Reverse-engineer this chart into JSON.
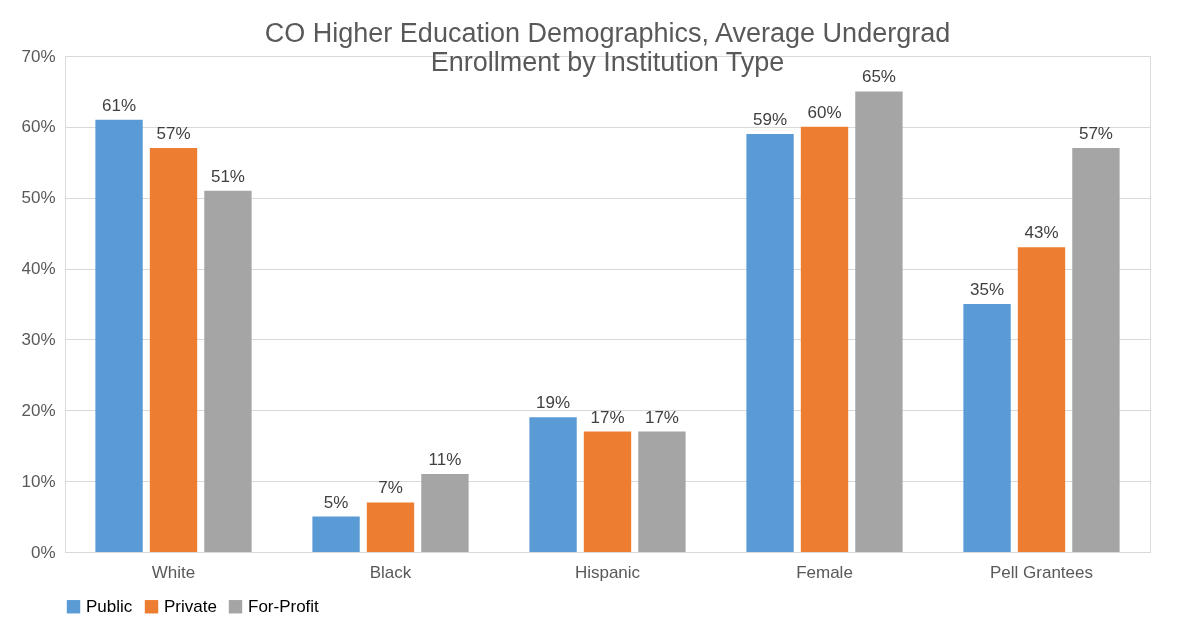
{
  "chart_data": {
    "type": "bar",
    "title": "CO Higher Education Demographics, Average Undergrad Enrollment by Institution Type",
    "categories": [
      "White",
      "Black",
      "Hispanic",
      "Female",
      "Pell Grantees"
    ],
    "series": [
      {
        "name": "Public",
        "color": "#5b9bd5",
        "values": [
          61,
          5,
          19,
          59,
          35
        ],
        "value_labels": [
          "61%",
          "5%",
          "19%",
          "59%",
          "35%"
        ]
      },
      {
        "name": "Private",
        "color": "#ed7d31",
        "values": [
          57,
          7,
          17,
          60,
          43
        ],
        "value_labels": [
          "57%",
          "7%",
          "17%",
          "60%",
          "43%"
        ]
      },
      {
        "name": "For-Profit",
        "color": "#a5a5a5",
        "values": [
          51,
          11,
          17,
          65,
          57
        ],
        "value_labels": [
          "51%",
          "11%",
          "17%",
          "65%",
          "57%"
        ]
      }
    ],
    "ylim": [
      0,
      70
    ],
    "yticks": [
      {
        "value": 0,
        "label": "0%"
      },
      {
        "value": 10,
        "label": "10%"
      },
      {
        "value": 20,
        "label": "20%"
      },
      {
        "value": 30,
        "label": "30%"
      },
      {
        "value": 40,
        "label": "40%"
      },
      {
        "value": 50,
        "label": "50%"
      },
      {
        "value": 60,
        "label": "60%"
      },
      {
        "value": 70,
        "label": "70%"
      }
    ],
    "grid": "y",
    "legend": "bottom"
  }
}
